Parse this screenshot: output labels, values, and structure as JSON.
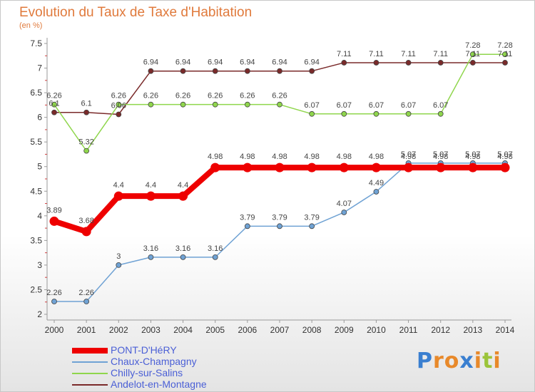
{
  "title": "Evolution du Taux de Taxe d'Habitation",
  "unit": "(en %)",
  "brand": {
    "letters": [
      "P",
      "r",
      "o",
      "x",
      "i",
      "t",
      "i"
    ],
    "colors": [
      "#3a7fd0",
      "#e8892a",
      "#e8892a",
      "#3a7fd0",
      "#e8892a",
      "#9bc43a",
      "#e8892a"
    ]
  },
  "chart_data": {
    "type": "line",
    "x": [
      2000,
      2001,
      2002,
      2003,
      2004,
      2005,
      2006,
      2007,
      2008,
      2009,
      2010,
      2011,
      2012,
      2013,
      2014
    ],
    "y_ticks": [
      "2",
      "2.5",
      "3",
      "3.5",
      "4",
      "4.5",
      "5",
      "5.5",
      "6",
      "6.5",
      "7",
      "7.5"
    ],
    "ylim": [
      2,
      7.5
    ],
    "grid": false,
    "legend_placement": "bottom-left",
    "series": [
      {
        "name": "PONT-D'HéRY",
        "color": "#ee0000",
        "values": [
          3.89,
          3.68,
          4.4,
          4.4,
          4.4,
          4.98,
          4.98,
          4.98,
          4.98,
          4.98,
          4.98,
          4.98,
          4.98,
          4.98,
          4.98
        ],
        "labels": [
          "3.89",
          "3.68",
          "4.4",
          "4.4",
          "4.4",
          "4.98",
          "4.98",
          "4.98",
          "4.98",
          "4.98",
          "4.98",
          "4.98",
          "4.98",
          "4.98",
          "4.98"
        ]
      },
      {
        "name": "Chaux-Champagny",
        "color": "#6fa2d4",
        "values": [
          2.26,
          2.26,
          3,
          3.16,
          3.16,
          3.16,
          3.79,
          3.79,
          3.79,
          4.07,
          4.49,
          5.07,
          5.07,
          5.07,
          5.07
        ],
        "labels": [
          "2.26",
          "2.26",
          "3",
          "3.16",
          "3.16",
          "3.16",
          "3.79",
          "3.79",
          "3.79",
          "4.07",
          "4.49",
          "5.07",
          "5.07",
          "5.07",
          "5.07"
        ]
      },
      {
        "name": "Chilly-sur-Salins",
        "color": "#8fd64c",
        "values": [
          6.26,
          5.32,
          6.26,
          6.26,
          6.26,
          6.26,
          6.26,
          6.26,
          6.07,
          6.07,
          6.07,
          6.07,
          6.07,
          7.28,
          7.28
        ],
        "labels": [
          "6.26",
          "5.32",
          "6.26",
          "6.26",
          "6.26",
          "6.26",
          "6.26",
          "6.26",
          "6.07",
          "6.07",
          "6.07",
          "6.07",
          "6.07",
          "7.28",
          "7.28"
        ]
      },
      {
        "name": "Andelot-en-Montagne",
        "color": "#7a2a2a",
        "values": [
          6.1,
          6.1,
          6.06,
          6.94,
          6.94,
          6.94,
          6.94,
          6.94,
          6.94,
          7.11,
          7.11,
          7.11,
          7.11,
          7.11,
          7.11
        ],
        "labels": [
          "6.1",
          "6.1",
          "6.06",
          "6.94",
          "6.94",
          "6.94",
          "6.94",
          "6.94",
          "6.94",
          "7.11",
          "7.11",
          "7.11",
          "7.11",
          "7.11",
          "7.11"
        ]
      }
    ]
  }
}
